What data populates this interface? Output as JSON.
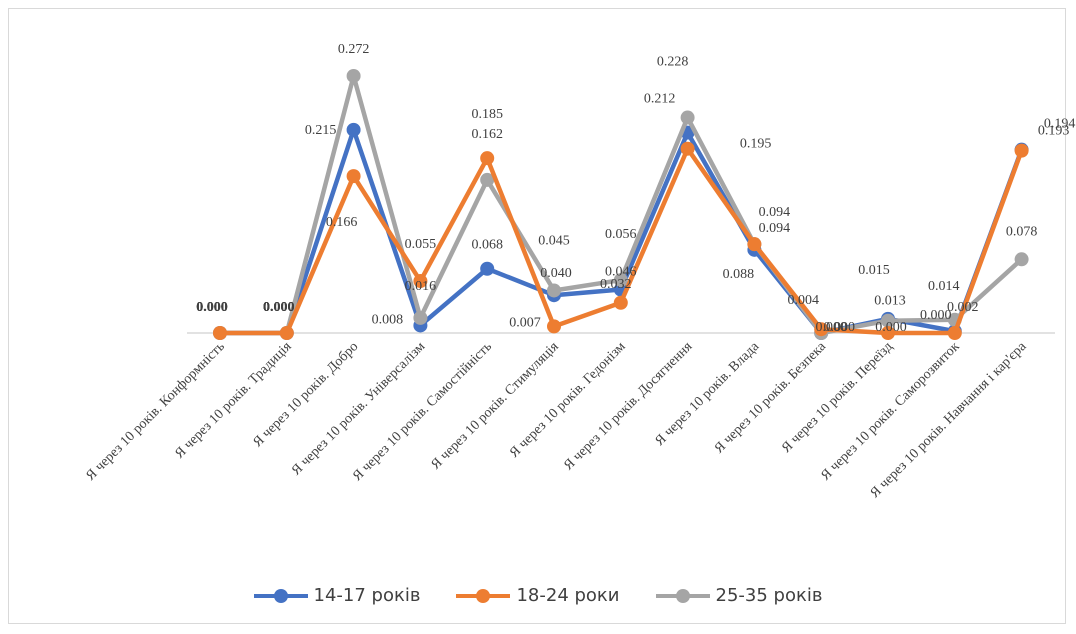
{
  "chart_data": {
    "type": "line",
    "title": "",
    "xlabel": "",
    "ylabel": "",
    "ylim": [
      0,
      0.28
    ],
    "grid": false,
    "legend_position": "bottom",
    "categories": [
      "Я через 10 років. Конформність",
      "Я через 10 років. Традиція",
      "Я через 10 років. Добро",
      "Я через 10 років. Універсалізм",
      "Я через 10 років. Самостійність",
      "Я через 10 років. Стимуляція",
      "Я через 10 років. Гедонізм",
      "Я через 10 років. Досягнення",
      "Я через 10 років. Влада",
      "Я через 10 років. Безпека",
      "Я через 10 років. Переїзд",
      "Я через 10 років. Саморозвиток",
      "Я через 10 років. Навчання і кар'єра"
    ],
    "series": [
      {
        "name": "14-17 років",
        "color": "#4472C4",
        "values": [
          0.0,
          0.0,
          0.215,
          0.008,
          0.068,
          0.04,
          0.046,
          0.212,
          0.088,
          0.0,
          0.015,
          0.002,
          0.194
        ],
        "labels": [
          "0.000",
          "0.000",
          "0.215",
          "0.008",
          "0.068",
          "0.040",
          "0.046",
          "0.212",
          "0.088",
          "0.000",
          "0.015",
          "0.002",
          "0.194"
        ]
      },
      {
        "name": "18-24 роки",
        "color": "#ED7D31",
        "values": [
          0.0,
          0.0,
          0.166,
          0.055,
          0.185,
          0.007,
          0.032,
          0.195,
          0.094,
          0.004,
          0.0,
          0.0,
          0.193
        ],
        "labels": [
          "0.000",
          "0.000",
          "0.166",
          "0.055",
          "0.185",
          "0.007",
          "0.032",
          "0.195",
          "0.094",
          "0.004",
          "0.000",
          "0.000",
          "0.193"
        ]
      },
      {
        "name": "25-35 років",
        "color": "#A5A5A5",
        "values": [
          0.0,
          0.0,
          0.272,
          0.016,
          0.162,
          0.045,
          0.056,
          0.228,
          0.094,
          0.0,
          0.013,
          0.014,
          0.078
        ],
        "labels": [
          "0.000",
          "0.000",
          "0.272",
          "0.016",
          "0.162",
          "0.045",
          "0.056",
          "0.228",
          "0.094",
          "0.000",
          "0.013",
          "0.014",
          "0.078"
        ]
      }
    ]
  }
}
